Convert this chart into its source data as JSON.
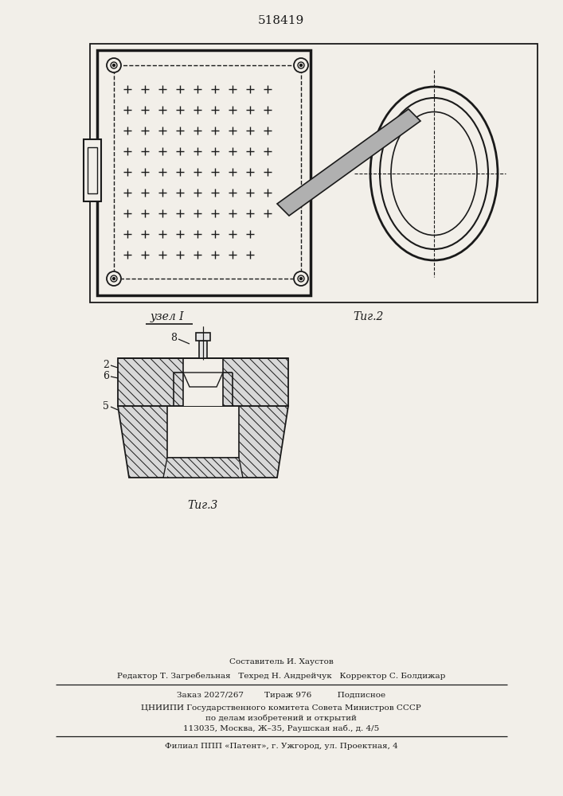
{
  "patent_number": "518419",
  "fig2_label": "Τиг.2",
  "fig3_label": "Τиг.3",
  "node_label": "узел I",
  "footer_line1": "Составитель И. Хаустов",
  "footer_line2": "Редактор Т. Загребельная   Техред Н. Андрейчук   Корректор С. Болдижар",
  "footer_line3": "Заказ 2027/267        Тираж 976          Подписное",
  "footer_line4": "ЦНИИПИ Государственного комитета Совета Министров СССР",
  "footer_line5": "по делам изобретений и открытий",
  "footer_line6": "113035, Москва, Ж–35, Раушская наб., д. 4/5",
  "footer_line7": "Филиал ППП «Патент», г. Ужгород, ул. Проектная, 4",
  "bg_color": "#f2efe9",
  "line_color": "#1a1a1a",
  "hatch_color": "#2a2a2a"
}
